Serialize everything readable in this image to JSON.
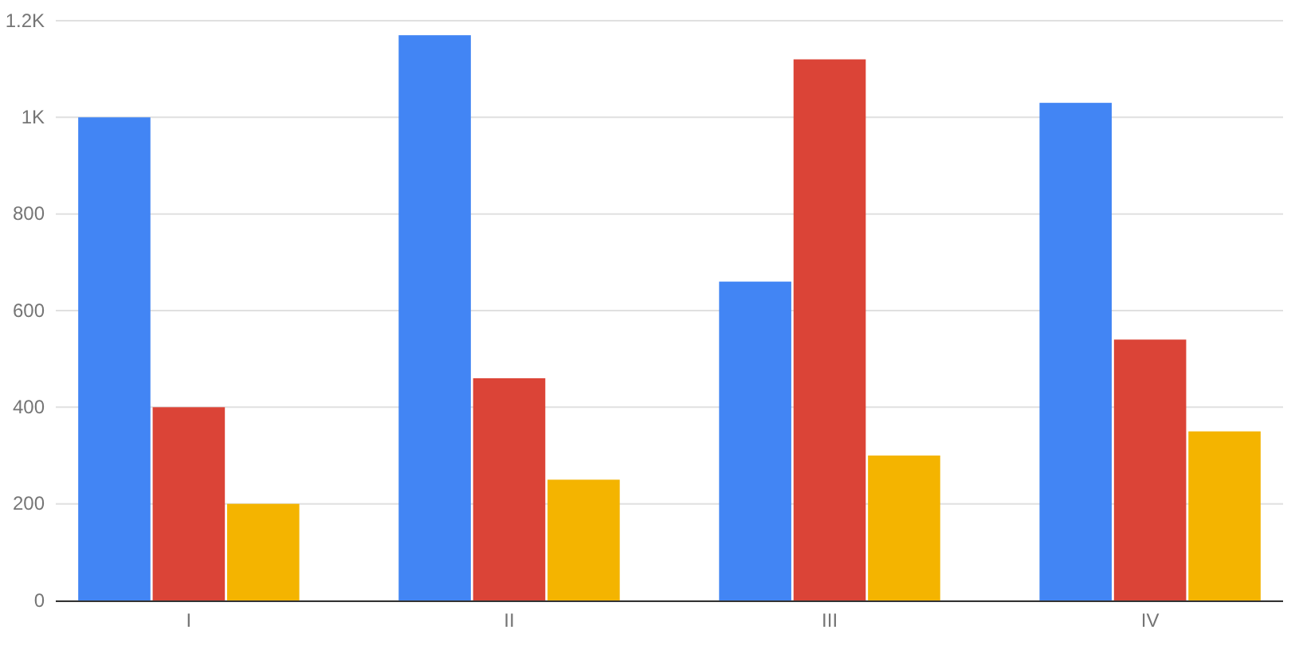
{
  "chart_data": {
    "type": "bar",
    "categories": [
      "I",
      "II",
      "III",
      "IV"
    ],
    "series": [
      {
        "color": "#4285f4",
        "values": [
          1000,
          1170,
          660,
          1030
        ]
      },
      {
        "color": "#db4437",
        "values": [
          400,
          460,
          1120,
          540
        ]
      },
      {
        "color": "#f4b400",
        "values": [
          200,
          250,
          300,
          350
        ]
      }
    ],
    "ylim": [
      0,
      1200
    ],
    "yticks": [
      0,
      200,
      400,
      600,
      800,
      {
        "value": 1000,
        "label": "1K"
      },
      {
        "value": 1200,
        "label": "1.2K"
      }
    ],
    "grid": "y"
  }
}
